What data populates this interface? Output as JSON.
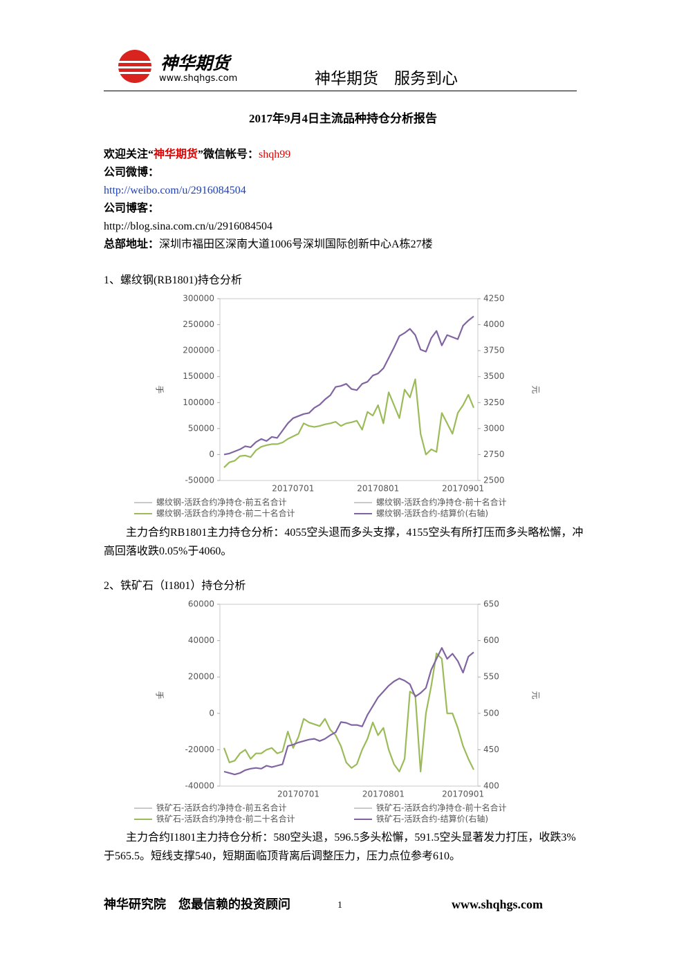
{
  "header": {
    "brand": "神华期货",
    "url": "www.shqhgs.com",
    "slogan": "神华期货　服务到心"
  },
  "title": "2017年9月4日主流品种持仓分析报告",
  "contact": {
    "wechat_prefix": "欢迎关注“",
    "wechat_name": "神华期货",
    "wechat_mid": "”微信帐号：",
    "wechat_id": "shqh99",
    "weibo_label": "公司微博：",
    "weibo_url": "http://weibo.com/u/2916084504",
    "blog_label": "公司博客：",
    "blog_url": "http://blog.sina.com.cn/u/2916084504",
    "address_label": "总部地址：",
    "address": "深圳市福田区深南大道1006号深圳国际创新中心A栋27楼"
  },
  "sections": [
    {
      "heading": "1、螺纹钢(RB1801)持仓分析",
      "analysis": "主力合约RB1801主力持仓分析：4055空头退而多头支撑，4155空头有所打压而多头略松懈，冲高回落收跌0.05%于4060。"
    },
    {
      "heading": "2、铁矿石（I1801）持仓分析",
      "analysis": "主力合约I1801主力持仓分析：580空头退，596.5多头松懈，591.5空头显著发力打压，收跌3%于565.5。短线支撑540，短期面临顶背离后调整压力，压力点位参考610。"
    }
  ],
  "chart_data": [
    {
      "type": "line",
      "y_label": "手",
      "y2_label": "元",
      "categories": [
        null,
        null,
        null,
        null,
        null,
        null,
        null,
        null,
        null,
        null,
        null,
        null,
        null,
        "20170701",
        null,
        null,
        null,
        null,
        null,
        null,
        null,
        null,
        null,
        null,
        null,
        null,
        null,
        null,
        null,
        "20170801",
        null,
        null,
        null,
        null,
        null,
        null,
        null,
        null,
        null,
        null,
        null,
        null,
        null,
        null,
        null,
        "20170901",
        null,
        null
      ],
      "ylim": [
        -50000,
        300000
      ],
      "yticks": [
        -50000,
        0,
        50000,
        100000,
        150000,
        200000,
        250000,
        300000
      ],
      "y2lim": [
        2500,
        4250
      ],
      "y2ticks": [
        2500,
        2750,
        3000,
        3250,
        3500,
        3750,
        4000,
        4250
      ],
      "series": [
        {
          "name": "螺纹钢-活跃合约净持仓-前五名合计",
          "color": "#c8c8c8"
        },
        {
          "name": "螺纹钢-活跃合约净持仓-前十名合计",
          "color": "#c8c8c8"
        },
        {
          "name": "螺纹钢-活跃合约净持仓-前二十名合计",
          "color": "#9bbb59",
          "values": [
            -25000,
            -15000,
            -12000,
            -3000,
            -2000,
            -5000,
            8000,
            15000,
            18000,
            20000,
            20000,
            23000,
            30000,
            35000,
            40000,
            60000,
            55000,
            53000,
            55000,
            58000,
            60000,
            63000,
            55000,
            60000,
            62000,
            65000,
            48000,
            82000,
            75000,
            95000,
            60000,
            120000,
            95000,
            70000,
            125000,
            110000,
            145000,
            40000,
            0,
            10000,
            5000,
            80000,
            60000,
            40000,
            80000,
            95000,
            115000,
            90000
          ]
        },
        {
          "name": "螺纹钢-活跃合约-结算价(右轴)",
          "color": "#8064a2",
          "axis": "y2",
          "values": [
            2750,
            2760,
            2780,
            2800,
            2830,
            2820,
            2870,
            2900,
            2880,
            2920,
            2910,
            2980,
            3050,
            3100,
            3120,
            3140,
            3150,
            3200,
            3230,
            3280,
            3320,
            3400,
            3410,
            3430,
            3380,
            3370,
            3430,
            3450,
            3510,
            3530,
            3580,
            3680,
            3780,
            3890,
            3920,
            3960,
            3900,
            3760,
            3740,
            3870,
            3940,
            3800,
            3900,
            3880,
            3860,
            3990,
            4040,
            4080
          ]
        }
      ]
    },
    {
      "type": "line",
      "y_label": "手",
      "y2_label": "元",
      "categories": [
        null,
        null,
        null,
        null,
        null,
        null,
        null,
        null,
        null,
        null,
        null,
        null,
        null,
        null,
        "20170701",
        null,
        null,
        null,
        null,
        null,
        null,
        null,
        null,
        null,
        null,
        null,
        null,
        null,
        null,
        null,
        "20170801",
        null,
        null,
        null,
        null,
        null,
        null,
        null,
        null,
        null,
        null,
        null,
        null,
        null,
        null,
        "20170901",
        null,
        null
      ],
      "ylim": [
        -40000,
        60000
      ],
      "yticks": [
        -40000,
        -20000,
        0,
        20000,
        40000,
        60000
      ],
      "y2lim": [
        400,
        650
      ],
      "y2ticks": [
        400,
        450,
        500,
        550,
        600,
        650
      ],
      "series": [
        {
          "name": "铁矿石-活跃合约净持仓-前五名合计",
          "color": "#c8c8c8"
        },
        {
          "name": "铁矿石-活跃合约净持仓-前十名合计",
          "color": "#c8c8c8"
        },
        {
          "name": "铁矿石-活跃合约净持仓-前二十名合计",
          "color": "#9bbb59",
          "values": [
            -19000,
            -27000,
            -26000,
            -22000,
            -20000,
            -25000,
            -22000,
            -22000,
            -20000,
            -19000,
            -22000,
            -21000,
            -10000,
            -19000,
            -13000,
            -3000,
            -5000,
            -6000,
            -7000,
            -3000,
            -9000,
            -12000,
            -18000,
            -27000,
            -30000,
            -28000,
            -20000,
            -14000,
            -5000,
            -12000,
            -8000,
            -20000,
            -28000,
            -32000,
            -25000,
            12000,
            10000,
            -32000,
            0,
            15000,
            33000,
            30000,
            0,
            0,
            -8000,
            -18000,
            -25000,
            -31000
          ]
        },
        {
          "name": "铁矿石-活跃合约-结算价(右轴)",
          "color": "#8064a2",
          "axis": "y2",
          "values": [
            420,
            418,
            416,
            418,
            422,
            424,
            425,
            424,
            428,
            426,
            428,
            430,
            455,
            457,
            460,
            462,
            464,
            465,
            462,
            465,
            470,
            474,
            488,
            487,
            484,
            484,
            482,
            498,
            510,
            522,
            530,
            538,
            544,
            548,
            545,
            540,
            523,
            528,
            535,
            560,
            575,
            590,
            575,
            582,
            572,
            556,
            578,
            584
          ]
        }
      ]
    }
  ],
  "footer": {
    "left": "神华研究院　您最信赖的投资顾问",
    "page": "1",
    "url": "www.shqhgs.com"
  }
}
